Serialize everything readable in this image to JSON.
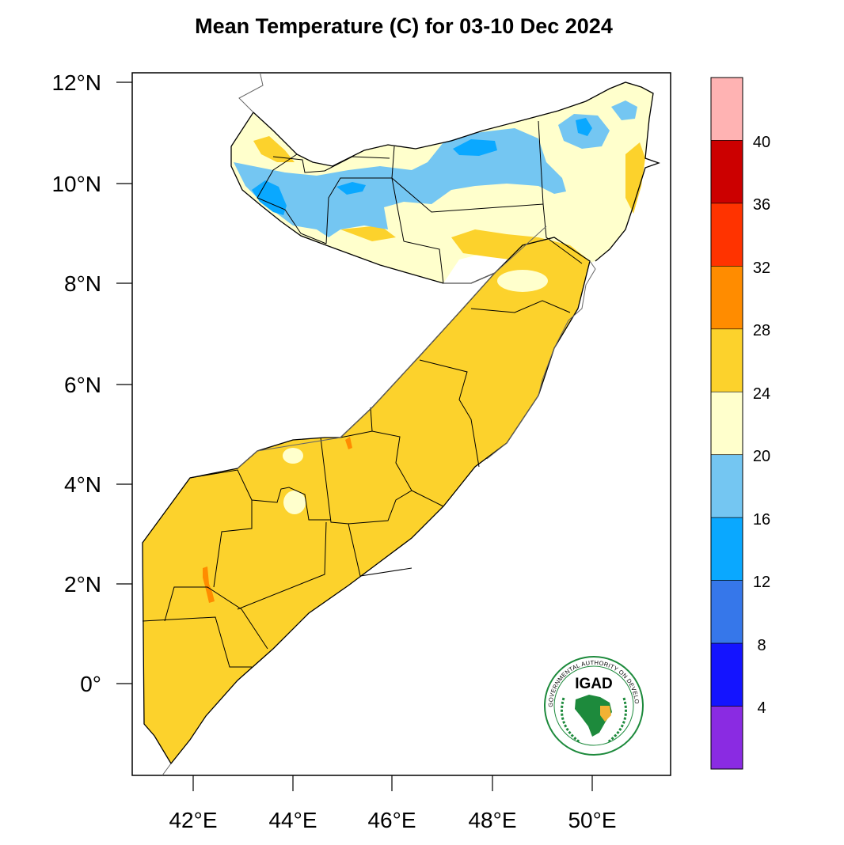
{
  "title": "Mean Temperature (C) for 03-10 Dec 2024",
  "lat_labels": [
    "12°N",
    "10°N",
    "8°N",
    "6°N",
    "4°N",
    "2°N",
    "0°"
  ],
  "lon_labels": [
    "42°E",
    "44°E",
    "46°E",
    "48°E",
    "50°E"
  ],
  "colorbar": {
    "labels": [
      "40",
      "36",
      "32",
      "28",
      "24",
      "20",
      "16",
      "12",
      "8",
      "4"
    ],
    "colors": [
      "#ffb3b3",
      "#cc0000",
      "#ff3300",
      "#ff8c00",
      "#fcd22c",
      "#ffffcc",
      "#74c6f2",
      "#0aa8ff",
      "#3677ea",
      "#1414ff",
      "#8a2be2"
    ]
  },
  "logo": {
    "text": "IGAD",
    "ring_text": "INTERGOVERNMENTAL AUTHORITY ON DEVELOPMENT",
    "color": "#1d8a3c"
  }
}
